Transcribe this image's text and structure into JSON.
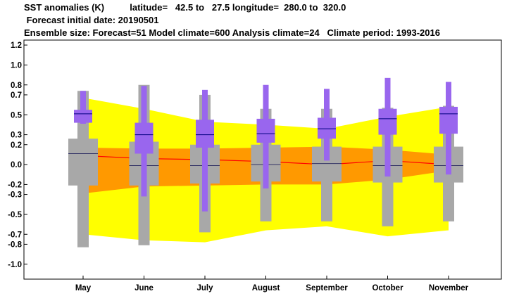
{
  "header": {
    "line1": "SST anomalies (K)          latitude=   42.5 to   27.5 longitude=  280.0 to  320.0",
    "line2": " Forecast initial date: 20190501",
    "line3": "Ensemble size: Forecast=51 Model climate=600 Analysis climate=24   Climate period: 1993-2016"
  },
  "chart_data": {
    "type": "box-plume",
    "title": "SST anomalies (K)",
    "categories": [
      "May",
      "June",
      "July",
      "August",
      "September",
      "October",
      "November"
    ],
    "y_ticks": [
      1.2,
      1.0,
      0.8,
      0.7,
      0.5,
      0.3,
      0.2,
      0.0,
      -0.2,
      -0.3,
      -0.5,
      -0.7,
      -0.8,
      -1.0
    ],
    "ylim": [
      -1.15,
      1.25
    ],
    "grid": false,
    "colors": {
      "outer_band": "#ffff00",
      "inner_band": "#ff9900",
      "climate_box": "#a8a8a8",
      "forecast_box": "#9966ee",
      "median_line": "#ff0000",
      "forecast_median": "#000080",
      "climate_median": "#333366"
    },
    "climate_series": {
      "name": "Model climate",
      "outer_high": [
        0.67,
        0.56,
        0.43,
        0.4,
        0.36,
        0.48,
        0.58
      ],
      "outer_low": [
        -0.7,
        -0.76,
        -0.78,
        -0.66,
        -0.62,
        -0.72,
        -0.66
      ],
      "inner_high": [
        0.17,
        0.16,
        0.16,
        0.17,
        0.18,
        0.15,
        0.1
      ],
      "inner_low": [
        -0.29,
        -0.22,
        -0.21,
        -0.2,
        -0.2,
        -0.15,
        -0.06
      ],
      "median": [
        0.09,
        0.06,
        0.05,
        0.03,
        0.0,
        0.04,
        0.0
      ],
      "box_boundary": [
        -0.22,
        -0.22,
        -0.21,
        -0.19,
        -0.17,
        -0.19,
        -0.19
      ]
    },
    "climate_boxes": [
      {
        "whisker_low": -0.83,
        "q1": -0.21,
        "median": 0.11,
        "q3": 0.26,
        "whisker_high": 0.74
      },
      {
        "whisker_low": -0.81,
        "q1": -0.21,
        "median": -0.01,
        "q3": 0.23,
        "whisker_high": 0.8
      },
      {
        "whisker_low": -0.68,
        "q1": -0.19,
        "median": -0.01,
        "q3": 0.2,
        "whisker_high": 0.7
      },
      {
        "whisker_low": -0.57,
        "q1": -0.17,
        "median": 0.0,
        "q3": 0.2,
        "whisker_high": 0.56
      },
      {
        "whisker_low": -0.57,
        "q1": -0.17,
        "median": 0.01,
        "q3": 0.18,
        "whisker_high": 0.56
      },
      {
        "whisker_low": -0.62,
        "q1": -0.18,
        "median": -0.01,
        "q3": 0.18,
        "whisker_high": 0.57
      },
      {
        "whisker_low": -0.57,
        "q1": -0.18,
        "median": -0.01,
        "q3": 0.18,
        "whisker_high": 0.59
      }
    ],
    "forecast_boxes": [
      {
        "whisker_low": 0.41,
        "q1": 0.42,
        "median": 0.51,
        "q3": 0.55,
        "whisker_high": 0.74
      },
      {
        "whisker_low": -0.32,
        "q1": 0.11,
        "median": 0.3,
        "q3": 0.42,
        "whisker_high": 0.79
      },
      {
        "whisker_low": -0.47,
        "q1": 0.17,
        "median": 0.3,
        "q3": 0.45,
        "whisker_high": 0.75
      },
      {
        "whisker_low": -0.24,
        "q1": 0.22,
        "median": 0.31,
        "q3": 0.46,
        "whisker_high": 0.8
      },
      {
        "whisker_low": 0.04,
        "q1": 0.26,
        "median": 0.36,
        "q3": 0.47,
        "whisker_high": 0.76
      },
      {
        "whisker_low": -0.12,
        "q1": 0.3,
        "median": 0.46,
        "q3": 0.56,
        "whisker_high": 0.87
      },
      {
        "whisker_low": -0.1,
        "q1": 0.31,
        "median": 0.51,
        "q3": 0.58,
        "whisker_high": 0.83
      }
    ]
  }
}
